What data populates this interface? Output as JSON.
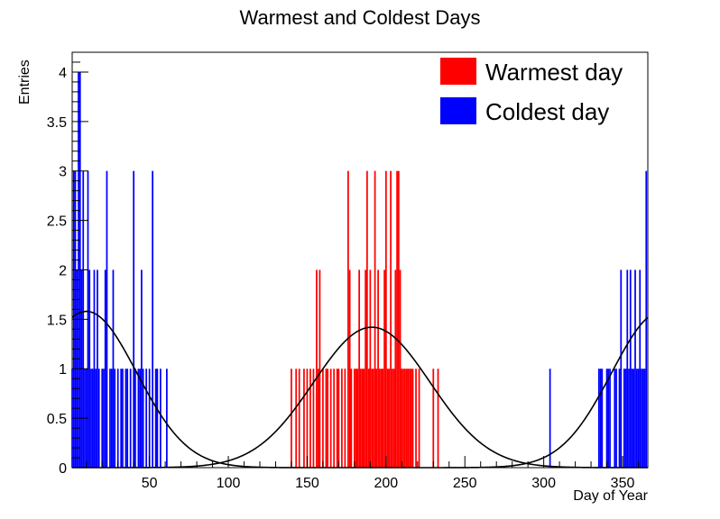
{
  "chart_data": {
    "type": "bar",
    "title": "Warmest and Coldest Days",
    "xlabel": "Day of Year",
    "ylabel": "Entries",
    "xlim": [
      1,
      366
    ],
    "ylim": [
      0,
      4.2
    ],
    "x_ticks": [
      50,
      100,
      150,
      200,
      250,
      300,
      350
    ],
    "y_ticks": [
      0,
      0.5,
      1,
      1.5,
      2,
      2.5,
      3,
      3.5,
      4
    ],
    "y_tick_labels": [
      "0",
      "0.5",
      "1",
      "1.5",
      "2",
      "2.5",
      "3",
      "3.5",
      "4"
    ],
    "legend_position": "top-right",
    "grid": false,
    "series": [
      {
        "name": "Warmest day",
        "color": "#ff0000",
        "days": [
          140,
          143,
          145,
          148,
          150,
          152,
          154,
          156,
          157,
          158,
          160,
          162,
          163,
          165,
          167,
          169,
          170,
          172,
          174,
          176,
          177,
          178,
          180,
          181,
          182,
          183,
          184,
          185,
          186,
          187,
          188,
          189,
          190,
          191,
          192,
          193,
          194,
          195,
          196,
          197,
          198,
          199,
          200,
          201,
          202,
          203,
          204,
          205,
          206,
          207,
          208,
          209,
          210,
          211,
          212,
          213,
          214,
          215,
          216,
          217,
          219,
          221,
          230,
          233
        ],
        "values": [
          1,
          1,
          1,
          1,
          1,
          1,
          1,
          2,
          1,
          2,
          1,
          1,
          1,
          1,
          1,
          1,
          1,
          1,
          1,
          3,
          2,
          1,
          1,
          1,
          1,
          2,
          1,
          1,
          1,
          2,
          3,
          1,
          2,
          1,
          1,
          3,
          1,
          2,
          1,
          1,
          1,
          2,
          3,
          1,
          1,
          3,
          1,
          1,
          2,
          3,
          3,
          2,
          1,
          1,
          1,
          1,
          1,
          1,
          1,
          1,
          1,
          1,
          1,
          1
        ]
      },
      {
        "name": "Coldest day",
        "color": "#0000ff",
        "days": [
          1,
          2,
          3,
          4,
          5,
          6,
          7,
          8,
          9,
          10,
          11,
          12,
          13,
          14,
          15,
          16,
          17,
          18,
          20,
          21,
          22,
          23,
          25,
          26,
          27,
          28,
          30,
          32,
          33,
          35,
          36,
          38,
          40,
          41,
          43,
          44,
          45,
          46,
          48,
          50,
          52,
          54,
          55,
          57,
          61,
          304,
          335,
          336,
          337,
          340,
          341,
          342,
          345,
          346,
          348,
          349,
          351,
          352,
          353,
          354,
          355,
          356,
          357,
          358,
          359,
          360,
          361,
          362,
          363,
          364,
          365
        ],
        "values": [
          1,
          3,
          3,
          2,
          4,
          4,
          2,
          3,
          1,
          1,
          3,
          2,
          1,
          1,
          2,
          1,
          2,
          1,
          1,
          1,
          2,
          3,
          1,
          1,
          2,
          1,
          1,
          1,
          1,
          1,
          1,
          1,
          3,
          1,
          1,
          1,
          2,
          1,
          1,
          1,
          3,
          1,
          1,
          1,
          1,
          1,
          1,
          1,
          1,
          1,
          1,
          1,
          1,
          1,
          1,
          2,
          1,
          1,
          2,
          1,
          2,
          1,
          1,
          2,
          1,
          1,
          2,
          1,
          1,
          1,
          3
        ]
      }
    ],
    "fits": [
      {
        "type": "gaussian",
        "amplitude": 1.42,
        "mean": 191,
        "sigma": 37,
        "color": "#000000"
      },
      {
        "type": "gaussian-periodic",
        "amplitude": 1.58,
        "mean": 10,
        "sigma": 32,
        "period": 365,
        "color": "#000000"
      }
    ]
  }
}
